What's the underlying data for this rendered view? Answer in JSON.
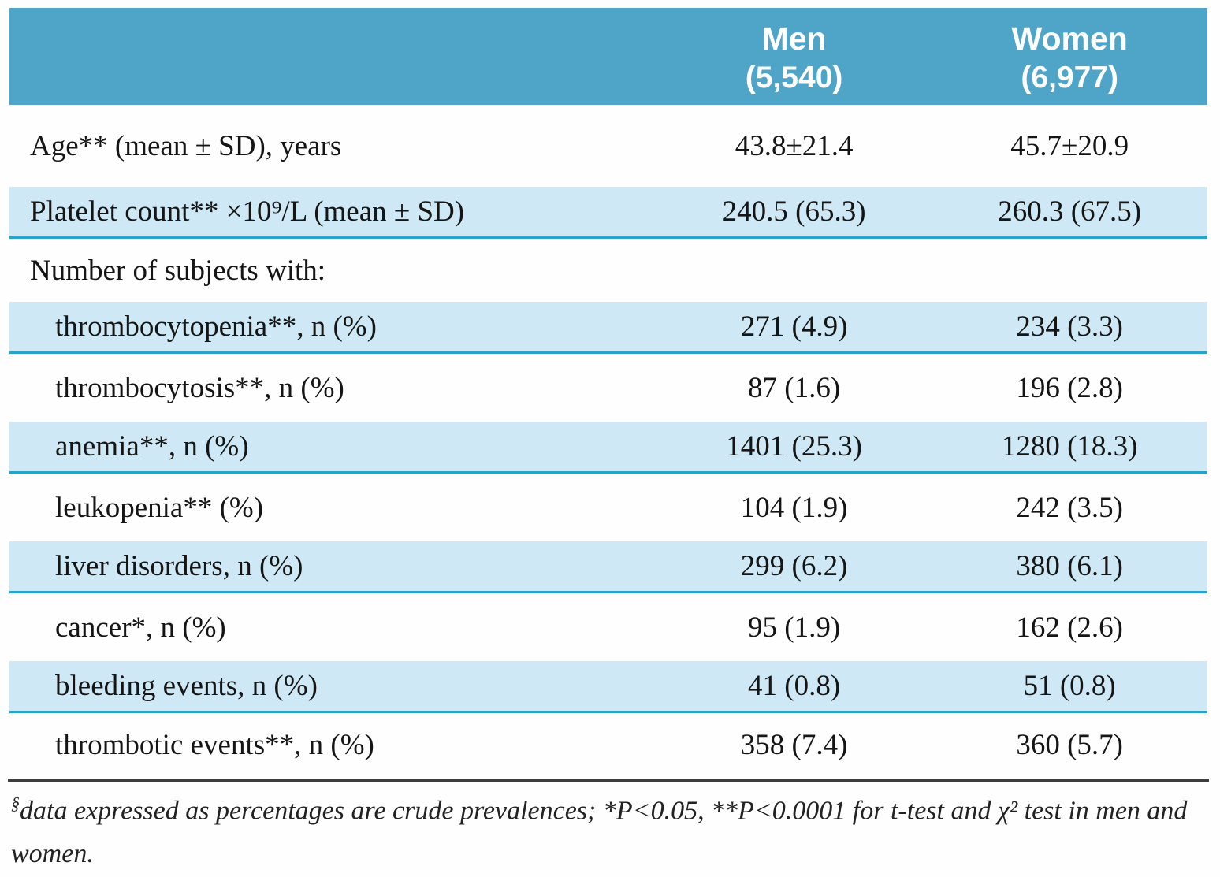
{
  "table": {
    "header": {
      "men": {
        "name": "Men",
        "count": "(5,540)"
      },
      "women": {
        "name": "Women",
        "count": "(6,977)"
      }
    },
    "rows": [
      {
        "label": "Age** (mean ± SD), years",
        "men": "43.8±21.4",
        "women": "45.7±20.9"
      },
      {
        "label": "Platelet count** ×10⁹/L (mean ± SD)",
        "men": "240.5 (65.3)",
        "women": "260.3 (67.5)"
      },
      {
        "label": "Number of subjects with:",
        "men": "",
        "women": ""
      },
      {
        "label": "thrombocytopenia**, n (%)",
        "men": "271 (4.9)",
        "women": "234 (3.3)"
      },
      {
        "label": "thrombocytosis**, n (%)",
        "men": "87 (1.6)",
        "women": "196 (2.8)"
      },
      {
        "label": "anemia**, n (%)",
        "men": "1401 (25.3)",
        "women": "1280 (18.3)"
      },
      {
        "label": "leukopenia** (%)",
        "men": "104 (1.9)",
        "women": "242 (3.5)"
      },
      {
        "label": "liver disorders, n (%)",
        "men": "299 (6.2)",
        "women": "380 (6.1)"
      },
      {
        "label": "cancer*, n (%)",
        "men": "95 (1.9)",
        "women": "162 (2.6)"
      },
      {
        "label": "bleeding events, n (%)",
        "men": "41 (0.8)",
        "women": "51 (0.8)"
      },
      {
        "label": "thrombotic events**, n (%)",
        "men": "358 (7.4)",
        "women": "360 (5.7)"
      }
    ]
  },
  "footnote": {
    "marker": "§",
    "text": "data expressed as percentages are crude prevalences; *P<0.05, **P<0.0001 for t-test and χ² test in men and women."
  },
  "colors": {
    "header_blue": "#4fa5c7",
    "row_light_blue": "#cee9f5",
    "row_border_cyan": "#2aa3ca",
    "bottom_rule": "#3d3d3d"
  }
}
